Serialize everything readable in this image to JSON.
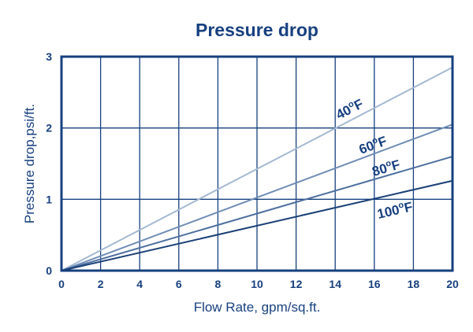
{
  "chart_data": {
    "type": "line",
    "title": "Pressure drop",
    "xlabel": "Flow Rate, gpm/sq.ft.",
    "ylabel": "Pressure drop,psi/ft.",
    "xlim": [
      0,
      20
    ],
    "ylim": [
      0,
      3
    ],
    "xticks": [
      0,
      2,
      4,
      6,
      8,
      10,
      12,
      14,
      16,
      18,
      20
    ],
    "yticks": [
      0,
      1,
      2,
      3
    ],
    "xtick_labels": [
      "0",
      "2",
      "4",
      "6",
      "8",
      "10",
      "12",
      "14",
      "16",
      "18",
      "20"
    ],
    "ytick_labels": [
      "0",
      "1",
      "2",
      "3"
    ],
    "grid": true,
    "series": [
      {
        "name": "40°F",
        "label_main": "40",
        "label_sup": "o",
        "label_unit": "F",
        "color": "#a4b9d2",
        "x": [
          0,
          20
        ],
        "y": [
          0,
          2.85
        ]
      },
      {
        "name": "60°F",
        "label_main": "60",
        "label_sup": "o",
        "label_unit": "F",
        "color": "#6f8db6",
        "x": [
          0,
          20
        ],
        "y": [
          0,
          2.05
        ]
      },
      {
        "name": "80°F",
        "label_main": "80",
        "label_sup": "o",
        "label_unit": "F",
        "color": "#4d6f9f",
        "x": [
          0,
          20
        ],
        "y": [
          0,
          1.6
        ]
      },
      {
        "name": "100°F",
        "label_main": "100",
        "label_sup": "o",
        "label_unit": "F",
        "color": "#1a3f77",
        "x": [
          0,
          20
        ],
        "y": [
          0,
          1.26
        ]
      }
    ]
  }
}
